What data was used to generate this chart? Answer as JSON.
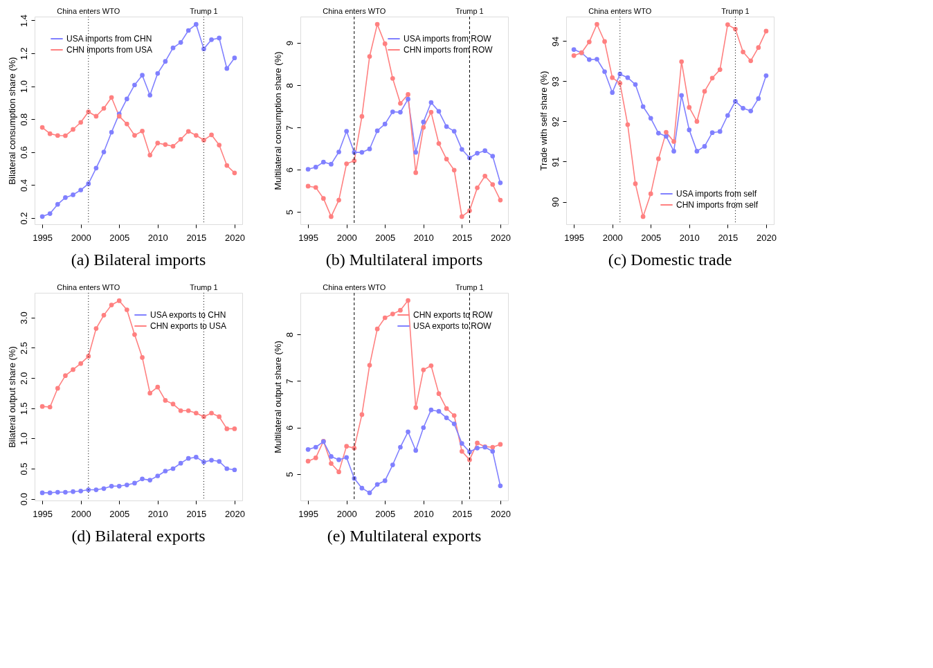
{
  "chart_data": [
    {
      "type": "line",
      "title": "(a) Bilateral imports",
      "ylabel": "Bilateral consumption share (%)",
      "legend": "top left",
      "marker": "circle",
      "line_style": "solid",
      "x": [
        1995,
        1996,
        1997,
        1998,
        1999,
        2000,
        2001,
        2002,
        2003,
        2004,
        2005,
        2006,
        2007,
        2008,
        2009,
        2010,
        2011,
        2012,
        2013,
        2014,
        2015,
        2016,
        2017,
        2018,
        2019,
        2020
      ],
      "series": [
        {
          "name": "USA imports from CHN",
          "color": "#8080ff",
          "values": [
            0.209,
            0.227,
            0.283,
            0.324,
            0.341,
            0.37,
            0.408,
            0.503,
            0.601,
            0.721,
            0.832,
            0.923,
            1.008,
            1.067,
            0.946,
            1.078,
            1.151,
            1.233,
            1.266,
            1.339,
            1.376,
            1.227,
            1.283,
            1.293,
            1.108,
            1.172
          ]
        },
        {
          "name": "CHN imports from USA",
          "color": "#ff8080",
          "values": [
            0.75,
            0.712,
            0.701,
            0.7,
            0.738,
            0.781,
            0.845,
            0.818,
            0.866,
            0.932,
            0.818,
            0.771,
            0.702,
            0.728,
            0.582,
            0.655,
            0.646,
            0.636,
            0.678,
            0.726,
            0.702,
            0.673,
            0.705,
            0.643,
            0.519,
            0.474
          ]
        }
      ],
      "xlim": [
        1994,
        2021
      ],
      "xticks": [
        1995,
        2000,
        2005,
        2010,
        2015,
        2020
      ],
      "ylim": [
        0.162,
        1.423
      ],
      "yticks": [
        0.2,
        0.4,
        0.6,
        0.8,
        {
          "value": 1,
          "label": "1.0"
        },
        1.2,
        1.4
      ],
      "ref_lines": [
        {
          "axis": "x",
          "value": 2001,
          "label": "China enters WTO",
          "line_style": "dotted"
        },
        {
          "axis": "x",
          "value": 2016,
          "label": "Trump 1",
          "line_style": "dotted"
        }
      ]
    },
    {
      "type": "line",
      "title": "(b) Multilateral imports",
      "ylabel": "Multilateral consumption share (%)",
      "legend": "top right",
      "marker": "circle",
      "line_style": "solid",
      "x": [
        1995,
        1996,
        1997,
        1998,
        1999,
        2000,
        2001,
        2002,
        2003,
        2004,
        2005,
        2006,
        2007,
        2008,
        2009,
        2010,
        2011,
        2012,
        2013,
        2014,
        2015,
        2016,
        2017,
        2018,
        2019,
        2020
      ],
      "series": [
        {
          "name": "USA imports from ROW",
          "color": "#8080ff",
          "values": [
            6.01,
            6.06,
            6.18,
            6.13,
            6.42,
            6.91,
            6.41,
            6.41,
            6.49,
            6.92,
            7.08,
            7.37,
            7.36,
            7.67,
            6.41,
            7.13,
            7.59,
            7.38,
            7.02,
            6.91,
            6.48,
            6.28,
            6.39,
            6.45,
            6.32,
            5.69
          ]
        },
        {
          "name": "CHN imports from ROW",
          "color": "#ff8080",
          "values": [
            5.61,
            5.58,
            5.32,
            4.89,
            5.28,
            6.14,
            6.21,
            7.26,
            8.68,
            9.44,
            8.98,
            8.16,
            7.57,
            7.78,
            5.93,
            7.0,
            7.36,
            6.62,
            6.25,
            5.99,
            4.89,
            5.03,
            5.57,
            5.85,
            5.65,
            5.28
          ]
        }
      ],
      "xlim": [
        1994,
        2021
      ],
      "xticks": [
        1995,
        2000,
        2005,
        2010,
        2015,
        2020
      ],
      "ylim": [
        4.708,
        9.622
      ],
      "yticks": [
        5,
        6,
        7,
        8,
        9
      ],
      "ref_lines": [
        {
          "axis": "x",
          "value": 2001,
          "label": "China enters WTO",
          "line_style": "dashed"
        },
        {
          "axis": "x",
          "value": 2016,
          "label": "Trump 1",
          "line_style": "dashed"
        }
      ]
    },
    {
      "type": "line",
      "title": "(c) Domestic trade",
      "ylabel": "Trade with self share (%)",
      "legend": "bottom right",
      "marker": "circle",
      "line_style": "solid",
      "x": [
        1995,
        1996,
        1997,
        1998,
        1999,
        2000,
        2001,
        2002,
        2003,
        2004,
        2005,
        2006,
        2007,
        2008,
        2009,
        2010,
        2011,
        2012,
        2013,
        2014,
        2015,
        2016,
        2017,
        2018,
        2019,
        2020
      ],
      "series": [
        {
          "name": "USA imports from self",
          "color": "#8080ff",
          "values": [
            93.79,
            93.71,
            93.54,
            93.55,
            93.24,
            92.72,
            93.18,
            93.09,
            92.92,
            92.37,
            92.08,
            91.71,
            91.63,
            91.26,
            92.65,
            91.79,
            91.26,
            91.38,
            91.72,
            91.75,
            92.15,
            92.5,
            92.33,
            92.26,
            92.57,
            93.14
          ]
        },
        {
          "name": "CHN imports from self",
          "color": "#ff8080",
          "values": [
            93.64,
            93.71,
            93.98,
            94.42,
            93.99,
            93.09,
            92.95,
            91.92,
            90.45,
            89.63,
            90.2,
            91.07,
            91.73,
            91.5,
            93.49,
            92.35,
            92.0,
            92.75,
            93.08,
            93.29,
            94.41,
            94.3,
            93.73,
            93.51,
            93.84,
            94.25
          ]
        }
      ],
      "xlim": [
        1994,
        2021
      ],
      "xticks": [
        1995,
        2000,
        2005,
        2010,
        2015,
        2020
      ],
      "ylim": [
        89.44,
        94.61
      ],
      "yticks": [
        90,
        91,
        92,
        93,
        94
      ],
      "ref_lines": [
        {
          "axis": "x",
          "value": 2001,
          "label": "China enters WTO",
          "line_style": "dotted"
        },
        {
          "axis": "x",
          "value": 2016,
          "label": "Trump 1",
          "line_style": "dotted"
        }
      ]
    },
    {
      "type": "line",
      "title": "(d) Bilateral exports",
      "ylabel": "Bilateral output share (%)",
      "legend": "top right",
      "marker": "circle",
      "line_style": "solid",
      "x": [
        1995,
        1996,
        1997,
        1998,
        1999,
        2000,
        2001,
        2002,
        2003,
        2004,
        2005,
        2006,
        2007,
        2008,
        2009,
        2010,
        2011,
        2012,
        2013,
        2014,
        2015,
        2016,
        2017,
        2018,
        2019,
        2020
      ],
      "series": [
        {
          "name": "USA exports to CHN",
          "color": "#8080ff",
          "values": [
            0.1,
            0.1,
            0.11,
            0.11,
            0.12,
            0.13,
            0.15,
            0.15,
            0.17,
            0.21,
            0.21,
            0.23,
            0.26,
            0.33,
            0.31,
            0.38,
            0.46,
            0.5,
            0.59,
            0.67,
            0.69,
            0.61,
            0.64,
            0.62,
            0.5,
            0.48
          ]
        },
        {
          "name": "CHN exports to USA",
          "color": "#ff8080",
          "values": [
            1.53,
            1.52,
            1.83,
            2.04,
            2.14,
            2.24,
            2.36,
            2.82,
            3.04,
            3.21,
            3.28,
            3.13,
            2.72,
            2.34,
            1.75,
            1.85,
            1.63,
            1.57,
            1.46,
            1.46,
            1.42,
            1.36,
            1.42,
            1.36,
            1.16,
            1.16
          ]
        }
      ],
      "xlim": [
        1994,
        2021
      ],
      "xticks": [
        1995,
        2000,
        2005,
        2010,
        2015,
        2020
      ],
      "ylim": [
        -0.027,
        3.411
      ],
      "yticks": [
        {
          "value": 0,
          "label": "0.0"
        },
        0.5,
        {
          "value": 1,
          "label": "1.0"
        },
        1.5,
        {
          "value": 2,
          "label": "2.0"
        },
        2.5,
        {
          "value": 3,
          "label": "3.0"
        }
      ],
      "ref_lines": [
        {
          "axis": "x",
          "value": 2001,
          "label": "China enters WTO",
          "line_style": "dotted"
        },
        {
          "axis": "x",
          "value": 2016,
          "label": "Trump 1",
          "line_style": "dotted"
        }
      ]
    },
    {
      "type": "line",
      "title": "(e) Multilateral exports",
      "ylabel": "Multilateral output share (%)",
      "legend": "top right",
      "marker": "circle",
      "line_style": "solid",
      "x": [
        1995,
        1996,
        1997,
        1998,
        1999,
        2000,
        2001,
        2002,
        2003,
        2004,
        2005,
        2006,
        2007,
        2008,
        2009,
        2010,
        2011,
        2012,
        2013,
        2014,
        2015,
        2016,
        2017,
        2018,
        2019,
        2020
      ],
      "series": [
        {
          "name": "CHN exports to ROW",
          "color": "#ff8080",
          "values": [
            5.28,
            5.35,
            5.71,
            5.23,
            5.05,
            5.6,
            5.56,
            6.28,
            7.34,
            8.12,
            8.36,
            8.44,
            8.52,
            8.73,
            6.43,
            7.24,
            7.33,
            6.73,
            6.41,
            6.26,
            5.49,
            5.31,
            5.67,
            5.59,
            5.58,
            5.64
          ]
        },
        {
          "name": "USA exports to ROW",
          "color": "#8080ff",
          "values": [
            5.53,
            5.58,
            5.7,
            5.38,
            5.31,
            5.36,
            4.91,
            4.7,
            4.6,
            4.78,
            4.86,
            5.2,
            5.58,
            5.91,
            5.51,
            6.0,
            6.38,
            6.35,
            6.21,
            6.08,
            5.66,
            5.48,
            5.56,
            5.58,
            5.49,
            4.75
          ]
        }
      ],
      "xlim": [
        1994,
        2021
      ],
      "xticks": [
        1995,
        2000,
        2005,
        2010,
        2015,
        2020
      ],
      "ylim": [
        4.435,
        8.895
      ],
      "yticks": [
        5,
        6,
        7,
        8
      ],
      "ref_lines": [
        {
          "axis": "x",
          "value": 2001,
          "label": "China enters WTO",
          "line_style": "dashed"
        },
        {
          "axis": "x",
          "value": 2016,
          "label": "Trump 1",
          "line_style": "dashed"
        }
      ]
    }
  ]
}
